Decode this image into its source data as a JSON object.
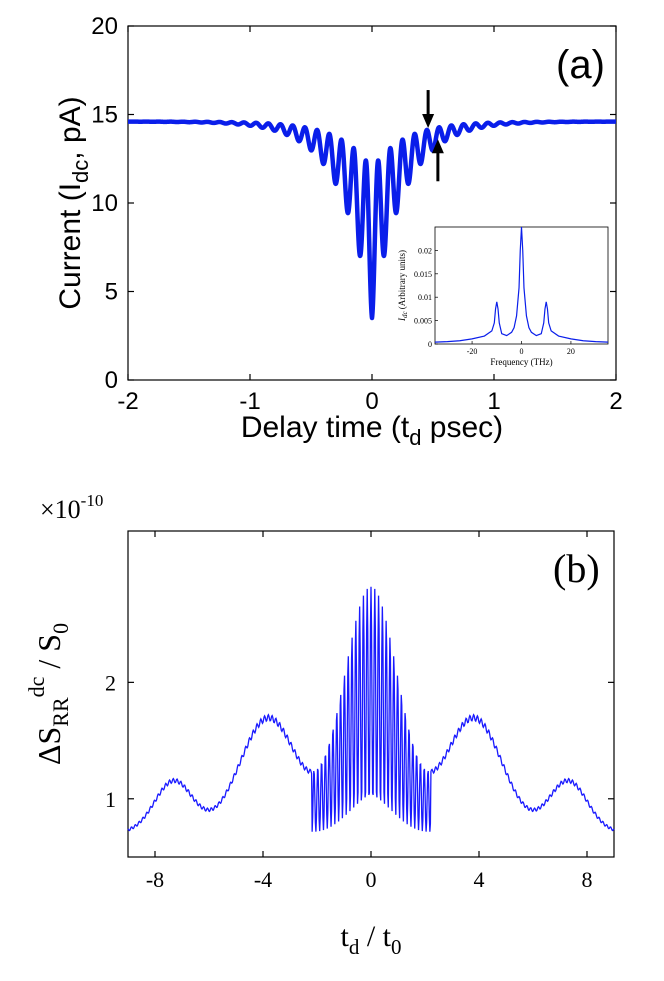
{
  "chart_data": [
    {
      "id": "a",
      "type": "line",
      "panel_label": "(a)",
      "xlabel": "Delay time (t",
      "xlabel_sub": "d",
      "xlabel_end": " psec)",
      "ylabel": "Current (I",
      "ylabel_sub": "dc",
      "ylabel_end": ", pA)",
      "xlim": [
        -2,
        2
      ],
      "ylim": [
        0,
        20
      ],
      "xticks": [
        -2,
        -1,
        0,
        1,
        2
      ],
      "yticks": [
        0,
        5,
        10,
        15,
        20
      ],
      "grid": false,
      "color": "#0a1eea",
      "baseline": 14.6,
      "dip_min": 3.5,
      "arrows_at_x": [
        0.46,
        0.54
      ],
      "inset": {
        "type": "line",
        "ylabel_main": "I",
        "ylabel_sub": "dc",
        "ylabel_end": " (Arbitrary units)",
        "xlabel": "Frequency (THz)",
        "xlim": [
          -35,
          35
        ],
        "ylim": [
          0,
          0.025
        ],
        "xticks": [
          -20,
          0,
          20
        ],
        "yticks": [
          0,
          0.005,
          0.01,
          0.015,
          0.02
        ],
        "xtick_labels": [
          "-20",
          "0",
          "20"
        ],
        "ytick_labels": [
          "0",
          "0.005",
          "0.01",
          "0.015",
          "0.02"
        ],
        "x": [
          -35,
          -30,
          -25,
          -20,
          -15,
          -12,
          -11,
          -10.5,
          -10,
          -9.5,
          -9,
          -8,
          -6,
          -4,
          -3,
          -2,
          -1,
          -0.5,
          0,
          0.5,
          1,
          2,
          3,
          4,
          6,
          8,
          9,
          9.5,
          10,
          10.5,
          11,
          12,
          15,
          20,
          25,
          30,
          35
        ],
        "y": [
          0.0004,
          0.0005,
          0.0007,
          0.0011,
          0.0017,
          0.0028,
          0.0045,
          0.0075,
          0.009,
          0.0075,
          0.0045,
          0.0022,
          0.0018,
          0.0025,
          0.0035,
          0.006,
          0.012,
          0.02,
          0.025,
          0.02,
          0.012,
          0.006,
          0.0035,
          0.0025,
          0.0018,
          0.0022,
          0.0045,
          0.0075,
          0.009,
          0.0075,
          0.0045,
          0.0028,
          0.0017,
          0.0011,
          0.0007,
          0.0005,
          0.0004
        ]
      }
    },
    {
      "id": "b",
      "type": "line",
      "panel_label": "(b)",
      "scale_label": "×10",
      "scale_exp": "-10",
      "ylabel_delta": "ΔS",
      "ylabel_sub": "RR",
      "ylabel_sup": "dc",
      "ylabel_end": " / S",
      "ylabel_end_sub": "0",
      "xlabel_main": "t",
      "xlabel_sub": "d",
      "xlabel_mid": " / t",
      "xlabel_sub2": "0",
      "xlim": [
        -9,
        9
      ],
      "ylim": [
        0.5,
        3.3
      ],
      "xticks": [
        -8,
        -4,
        0,
        4,
        8
      ],
      "yticks": [
        1,
        2
      ],
      "grid": false,
      "color": "#1a1aff",
      "min_value": 0.62,
      "max_value": 3.0
    }
  ]
}
